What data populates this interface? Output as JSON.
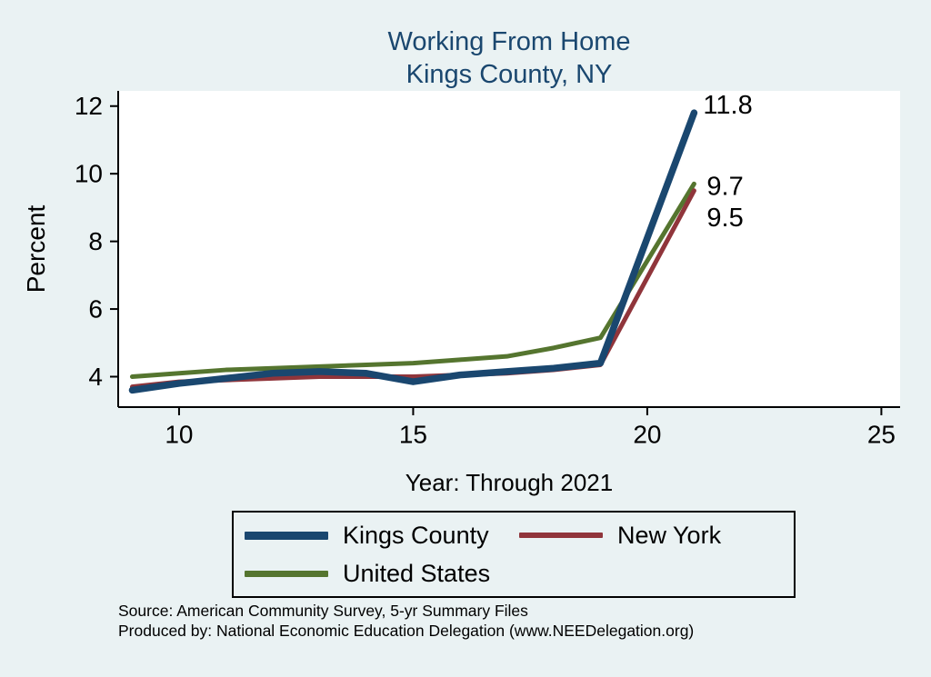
{
  "title": {
    "line1": "Working From Home",
    "line2": "Kings County, NY",
    "color": "#1a476f"
  },
  "chart_data": {
    "type": "line",
    "title": "Working From Home — Kings County, NY",
    "xlabel": "Year: Through 2021",
    "ylabel": "Percent",
    "grid": false,
    "legend_position": "bottom",
    "xlim": [
      8.7,
      25.4
    ],
    "ylim": [
      3.1,
      12.45
    ],
    "x_ticks": [
      10,
      15,
      20,
      25
    ],
    "y_ticks": [
      4,
      6,
      8,
      10,
      12
    ],
    "x": [
      9,
      10,
      11,
      12,
      13,
      14,
      15,
      16,
      17,
      18,
      19,
      21
    ],
    "draw_order": [
      2,
      1,
      0
    ],
    "series": [
      {
        "name": "Kings County",
        "color": "#1a476f",
        "width": 7.5,
        "end_label": "11.8",
        "end_label_offset": [
          10,
          -8
        ],
        "values": [
          3.6,
          3.8,
          3.95,
          4.1,
          4.15,
          4.1,
          3.85,
          4.05,
          4.15,
          4.25,
          4.4,
          11.8
        ]
      },
      {
        "name": "New York",
        "color": "#90353b",
        "width": 5,
        "end_label": "9.5",
        "end_label_offset": [
          14,
          30
        ],
        "values": [
          3.7,
          3.85,
          3.9,
          3.95,
          4.0,
          4.0,
          4.0,
          4.05,
          4.1,
          4.2,
          4.35,
          9.5
        ]
      },
      {
        "name": "United States",
        "color": "#55752f",
        "width": 5,
        "end_label": "9.7",
        "end_label_offset": [
          14,
          3
        ],
        "values": [
          4.0,
          4.1,
          4.2,
          4.25,
          4.3,
          4.35,
          4.4,
          4.5,
          4.6,
          4.85,
          5.15,
          9.7
        ]
      }
    ]
  },
  "legend": {
    "items": [
      {
        "label": "Kings County",
        "color": "#1a476f",
        "swatch_height": 9
      },
      {
        "label": "New York",
        "color": "#90353b",
        "swatch_height": 6
      },
      {
        "label": "United States",
        "color": "#55752f",
        "swatch_height": 7
      }
    ]
  },
  "footer": {
    "line1": "Source: American Community Survey, 5-yr Summary Files",
    "line2": "Produced by: National Economic Education Delegation (www.NEEDelegation.org)"
  }
}
